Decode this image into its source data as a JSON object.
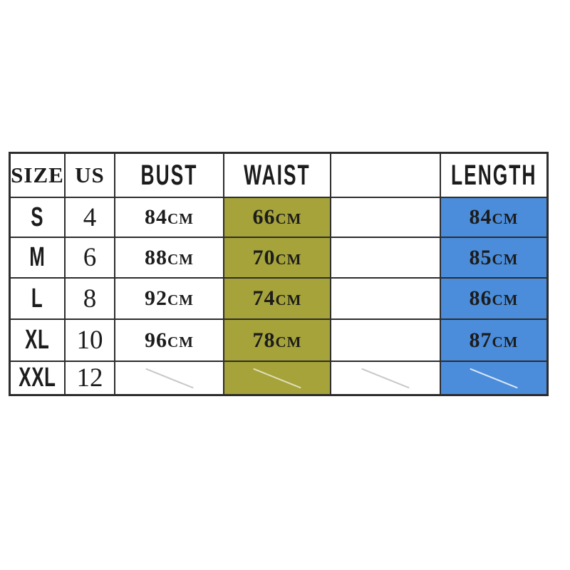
{
  "page": {
    "background": "#ffffff"
  },
  "table": {
    "title": "size-chart",
    "headers": [
      "SIZE",
      "US",
      "BUST",
      "WAIST",
      "",
      "LENGTH"
    ],
    "rows": [
      {
        "size": "S",
        "us": "4",
        "bust": "84cm",
        "waist": "66cm",
        "blank": "",
        "length": "84cm",
        "no_data": false
      },
      {
        "size": "M",
        "us": "6",
        "bust": "88cm",
        "waist": "70cm",
        "blank": "",
        "length": "85cm",
        "no_data": false
      },
      {
        "size": "L",
        "us": "8",
        "bust": "92cm",
        "waist": "74cm",
        "blank": "",
        "length": "86cm",
        "no_data": false
      },
      {
        "size": "XL",
        "us": "10",
        "bust": "96cm",
        "waist": "78cm",
        "blank": "",
        "length": "87cm",
        "no_data": false
      },
      {
        "size": "XXL",
        "us": "12",
        "bust": "",
        "waist": "",
        "blank": "",
        "length": "",
        "no_data": true
      }
    ],
    "no_data_marker": "diagonal-slash",
    "colors": {
      "waist_column_highlight": "#a5a339",
      "length_column_highlight": "#4b8dda",
      "border": "#2d2d2d",
      "cell_background": "#ffffff"
    }
  }
}
